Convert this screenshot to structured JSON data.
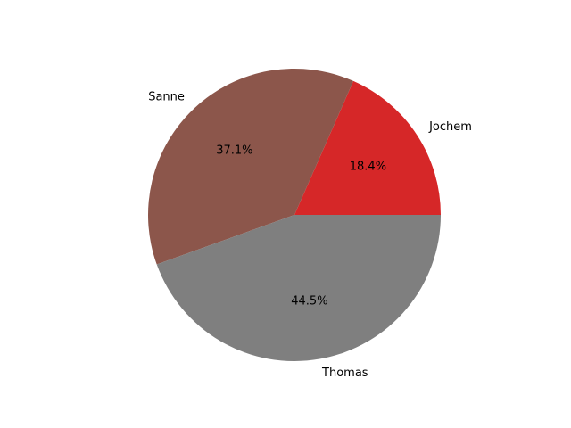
{
  "chart_data": {
    "type": "pie",
    "title": "",
    "slices": [
      {
        "label": "Jochem",
        "value": 18.4,
        "pct_label": "18.4%",
        "color": "#d62728"
      },
      {
        "label": "Sanne",
        "value": 37.1,
        "pct_label": "37.1%",
        "color": "#8c564b"
      },
      {
        "label": "Thomas",
        "value": 44.5,
        "pct_label": "44.5%",
        "color": "#7f7f7f"
      }
    ],
    "start_angle_deg": 0,
    "direction": "counterclockwise",
    "legend": "none"
  }
}
